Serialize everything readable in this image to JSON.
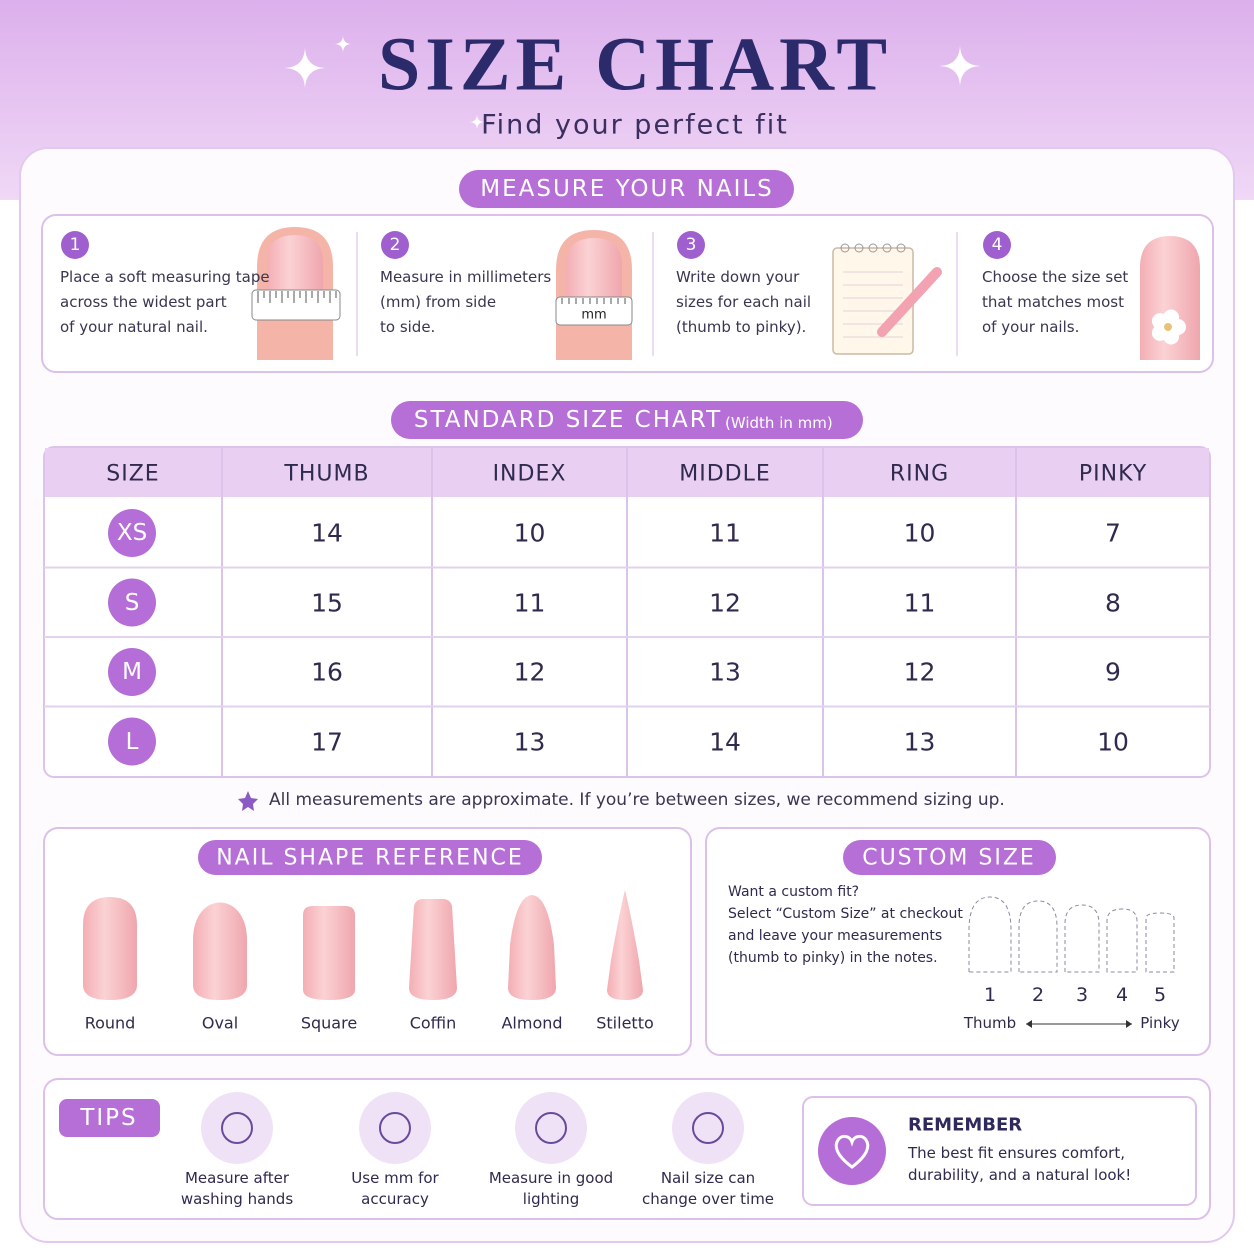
{
  "header": {
    "title": "SIZE CHART",
    "subtitle": "Find your perfect fit"
  },
  "measure": {
    "heading": "MEASURE YOUR NAILS",
    "steps": [
      {
        "number": "1",
        "lines": [
          "Place a soft measuring tape",
          "across the widest part",
          "of your natural nail."
        ]
      },
      {
        "number": "2",
        "lines": [
          "Measure in millimeters",
          "(mm) from side",
          "to side."
        ],
        "tape_label": "mm"
      },
      {
        "number": "3",
        "lines": [
          "Write down your",
          "sizes for each nail",
          "(thumb to pinky)."
        ]
      },
      {
        "number": "4",
        "lines": [
          "Choose the size set",
          "that matches most",
          "of your nails."
        ]
      }
    ]
  },
  "size_chart": {
    "heading": "STANDARD SIZE CHART",
    "unit": "(Width in mm)",
    "columns": [
      "SIZE",
      "THUMB",
      "INDEX",
      "MIDDLE",
      "RING",
      "PINKY"
    ],
    "rows": [
      [
        "XS",
        14,
        10,
        11,
        10,
        7
      ],
      [
        "S",
        15,
        11,
        12,
        11,
        8
      ],
      [
        "M",
        16,
        12,
        13,
        12,
        9
      ],
      [
        "L",
        17,
        13,
        14,
        13,
        10
      ]
    ],
    "note": "All measurements are approximate. If you’re between sizes, we recommend sizing up."
  },
  "shapes": {
    "heading": "NAIL SHAPE REFERENCE",
    "items": [
      "Round",
      "Oval",
      "Square",
      "Coffin",
      "Almond",
      "Stiletto"
    ]
  },
  "custom": {
    "heading": "CUSTOM SIZE",
    "lines": [
      "Want a custom fit?",
      "Select “Custom Size” at checkout",
      "and leave your measurements",
      "(thumb to pinky) in the notes."
    ],
    "fingers": [
      "1",
      "2",
      "3",
      "4",
      "5"
    ],
    "from": "Thumb",
    "to": "Pinky"
  },
  "tips": {
    "heading": "TIPS",
    "items": [
      {
        "lines": [
          "Measure after",
          "washing hands"
        ]
      },
      {
        "lines": [
          "Use mm for",
          "accuracy"
        ]
      },
      {
        "lines": [
          "Measure in good",
          "lighting"
        ]
      },
      {
        "lines": [
          "Nail size can",
          "change over time"
        ]
      }
    ]
  },
  "remember": {
    "title": "REMEMBER",
    "lines": [
      "The best fit ensures comfort,",
      "durability, and a natural look!"
    ]
  }
}
